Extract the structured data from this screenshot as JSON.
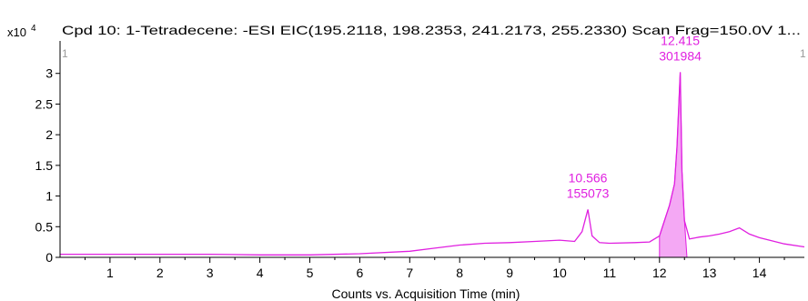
{
  "header": {
    "multiplier_base": "x10",
    "multiplier_exp": "4",
    "title": "Cpd  10: 1-Tetradecene: -ESI EIC(195.2118,  198.2353,  241.2173,  255.2330) Scan  Frag=150.0V  1...",
    "marker_left": "1",
    "marker_right": "1"
  },
  "colors": {
    "trace": "#e020e0",
    "fill": "#f4a8f4",
    "label": "#e020e0",
    "axis": "#000000"
  },
  "chart_data": {
    "type": "line",
    "xlabel": "Counts vs. Acquisition Time (min)",
    "ylabel": "",
    "xlim": [
      0,
      14.9
    ],
    "ylim": [
      0,
      35000
    ],
    "grid": false,
    "x_ticks": [
      1,
      2,
      3,
      4,
      5,
      6,
      7,
      8,
      9,
      10,
      11,
      12,
      13,
      14
    ],
    "x_tick_labels": [
      "1",
      "2",
      "3",
      "4",
      "5",
      "6",
      "7",
      "8",
      "9",
      "10",
      "11",
      "12",
      "13",
      "14"
    ],
    "y_ticks": [
      0,
      5000,
      10000,
      15000,
      20000,
      25000,
      30000
    ],
    "y_tick_labels": [
      "0",
      "0.5",
      "1",
      "1.5",
      "2",
      "2.5",
      "3"
    ],
    "series": [
      {
        "x": [
          0.0,
          1.0,
          2.0,
          3.0,
          4.0,
          5.0,
          6.0,
          7.0,
          7.5,
          8.0,
          8.5,
          9.0,
          9.5,
          10.0,
          10.3,
          10.45,
          10.566,
          10.65,
          10.8,
          11.0,
          11.5,
          11.8,
          12.0,
          12.1,
          12.2,
          12.3,
          12.35,
          12.415,
          12.45,
          12.5,
          12.6,
          12.8,
          13.0,
          13.2,
          13.4,
          13.6,
          13.8,
          14.0,
          14.2,
          14.5,
          14.9
        ],
        "y": [
          500,
          500,
          500,
          500,
          400,
          400,
          600,
          1000,
          1500,
          2000,
          2300,
          2400,
          2600,
          2800,
          2600,
          4200,
          7800,
          3500,
          2400,
          2300,
          2400,
          2500,
          3500,
          6000,
          8500,
          12000,
          18000,
          30198,
          14000,
          6000,
          3000,
          3300,
          3500,
          3800,
          4200,
          4800,
          3800,
          3200,
          2800,
          2200,
          1700
        ]
      }
    ],
    "integrated_regions": [
      {
        "x_start": 12.0,
        "x_end": 12.55
      }
    ],
    "annotations": [
      {
        "x": 10.566,
        "y": 7800,
        "rt": "10.566",
        "area": "155073"
      },
      {
        "x": 12.415,
        "y": 30198,
        "rt": "12.415",
        "area": "301984"
      }
    ]
  }
}
